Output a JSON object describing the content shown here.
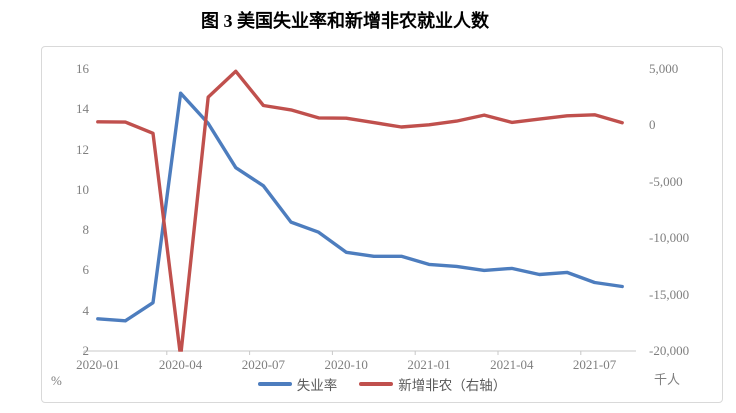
{
  "page": {
    "title": "图 3 美国失业率和新增非农就业人数"
  },
  "chart_data": {
    "type": "line",
    "title": "图 3 美国失业率和新增非农就业人数",
    "x": [
      "2020-01",
      "2020-02",
      "2020-03",
      "2020-04",
      "2020-05",
      "2020-06",
      "2020-07",
      "2020-08",
      "2020-09",
      "2020-10",
      "2020-11",
      "2020-12",
      "2021-01",
      "2021-02",
      "2021-03",
      "2021-04",
      "2021-05",
      "2021-06",
      "2021-07",
      "2021-08"
    ],
    "x_tick_labels": [
      "2020-01",
      "2020-04",
      "2020-07",
      "2020-10",
      "2021-01",
      "2021-04",
      "2021-07"
    ],
    "series": [
      {
        "name": "失业率",
        "axis": "left",
        "color": "#4d7dbe",
        "values": [
          3.6,
          3.5,
          4.4,
          14.8,
          13.3,
          11.1,
          10.2,
          8.4,
          7.9,
          6.9,
          6.7,
          6.7,
          6.3,
          6.2,
          6.0,
          6.1,
          5.8,
          5.9,
          5.4,
          5.2
        ]
      },
      {
        "name": "新增非农（右轴）",
        "axis": "right",
        "color": "#c0504d",
        "values": [
          315,
          289,
          -701,
          -20500,
          2509,
          4800,
          1763,
          1371,
          661,
          638,
          245,
          -140,
          49,
          379,
          916,
          266,
          559,
          850,
          943,
          235
        ]
      }
    ],
    "left_axis": {
      "unit": "%",
      "range": [
        2,
        16
      ],
      "ticks": [
        2,
        4,
        6,
        8,
        10,
        12,
        14,
        16
      ]
    },
    "right_axis": {
      "unit": "千人",
      "range": [
        -20000,
        5000
      ],
      "ticks": [
        5000,
        0,
        -5000,
        -10000,
        -15000,
        -20000
      ],
      "tick_labels": [
        "5,000",
        "0",
        "-5,000",
        "-10,000",
        "-15,000",
        "-20,000"
      ]
    },
    "legend": [
      {
        "label": "失业率",
        "color": "#4d7dbe"
      },
      {
        "label": "新增非农（右轴）",
        "color": "#c0504d"
      }
    ],
    "legend_position": "bottom",
    "grid": false,
    "axis_line_color": "#c8c8c8",
    "label_color": "#7f7f7f"
  }
}
